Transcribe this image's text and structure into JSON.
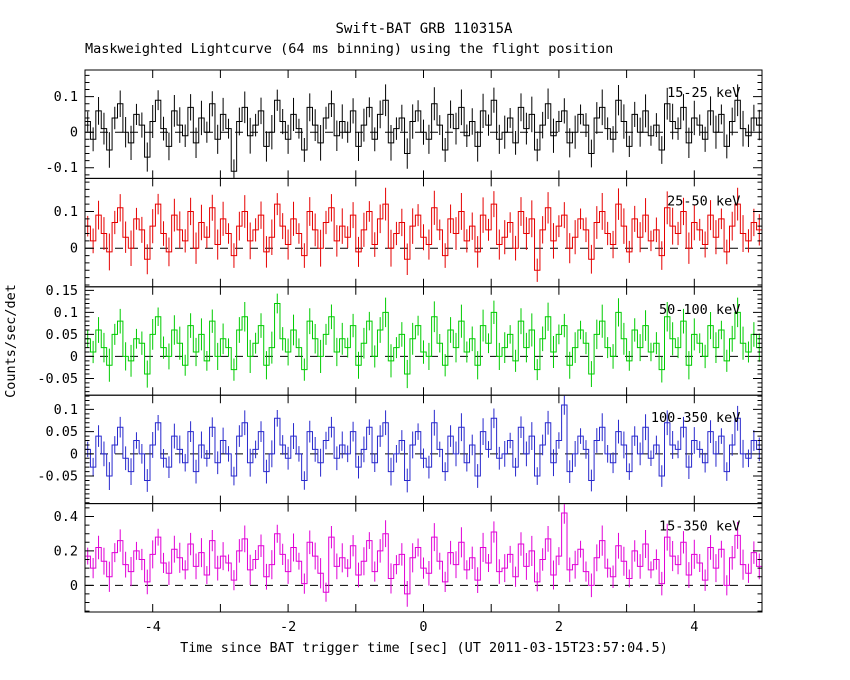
{
  "title": "Swift-BAT GRB 110315A",
  "subtitle": "Maskweighted Lightcurve (64 ms binning) using the flight position",
  "ylabel": "Counts/sec/det",
  "xlabel": "Time since BAT trigger time [sec] (UT 2011-03-15T23:57:04.5)",
  "chart_data": {
    "type": "line",
    "style": "step-histogram-with-error-bars",
    "grid": false,
    "x_range": [
      -5,
      5
    ],
    "x_major_ticks": [
      -4,
      -2,
      0,
      2,
      4
    ],
    "x_tick_step": 1,
    "bin_width_s": 0.08,
    "zero_line": "dashed",
    "panels": [
      {
        "label": "15-25 keV",
        "color": "#000000",
        "ylim": [
          -0.13,
          0.175
        ],
        "yticks": [
          -0.1,
          0,
          0.1
        ],
        "ytick_labels": [
          "-0.1",
          "0",
          "0.1"
        ],
        "minor_step": 0.02,
        "err": 0.04,
        "unit": 0.01,
        "values": [
          3,
          -2,
          6,
          1,
          -5,
          4,
          8,
          0,
          -3,
          5,
          2,
          -7,
          3,
          9,
          1,
          -4,
          6,
          2,
          -1,
          7,
          -3,
          4,
          0,
          8,
          -2,
          5,
          1,
          -11,
          3,
          7,
          -1,
          2,
          6,
          -4,
          0,
          9,
          3,
          -2,
          5,
          1,
          -5,
          7,
          2,
          -3,
          4,
          8,
          -1,
          3,
          0,
          6,
          -4,
          2,
          7,
          -2,
          5,
          9,
          -3,
          1,
          4,
          -6,
          3,
          6,
          0,
          -2,
          8,
          2,
          -5,
          5,
          1,
          7,
          -1,
          3,
          -4,
          6,
          2,
          9,
          -2,
          0,
          4,
          -3,
          7,
          1,
          5,
          -5,
          2,
          8,
          -1,
          3,
          6,
          -3,
          0,
          5,
          2,
          -6,
          4,
          7,
          1,
          -2,
          9,
          3,
          -4,
          5,
          0,
          6,
          -1,
          2,
          -5,
          8,
          3,
          1,
          7,
          -3,
          4,
          2,
          -2,
          6,
          0,
          5,
          -4,
          3,
          9,
          1,
          -1,
          4,
          2
        ]
      },
      {
        "label": "25-50 keV",
        "color": "#e60000",
        "ylim": [
          -0.105,
          0.19
        ],
        "yticks": [
          0,
          0.1
        ],
        "ytick_labels": [
          "0",
          "0.1"
        ],
        "minor_step": 0.02,
        "err": 0.04,
        "unit": 0.01,
        "values": [
          6,
          2,
          9,
          4,
          -1,
          7,
          11,
          3,
          0,
          8,
          5,
          -3,
          6,
          12,
          4,
          -1,
          9,
          5,
          2,
          10,
          0,
          7,
          3,
          11,
          1,
          8,
          4,
          -2,
          6,
          10,
          2,
          5,
          9,
          -1,
          3,
          12,
          6,
          1,
          8,
          4,
          -2,
          10,
          5,
          0,
          7,
          11,
          2,
          6,
          3,
          9,
          -1,
          5,
          10,
          1,
          8,
          12,
          0,
          4,
          7,
          -3,
          6,
          9,
          3,
          1,
          11,
          5,
          -2,
          8,
          4,
          10,
          2,
          6,
          -1,
          9,
          5,
          12,
          1,
          3,
          7,
          0,
          10,
          4,
          8,
          -6,
          5,
          11,
          2,
          6,
          9,
          0,
          3,
          8,
          5,
          -3,
          7,
          10,
          4,
          1,
          12,
          6,
          -1,
          8,
          3,
          9,
          2,
          5,
          -2,
          11,
          6,
          4,
          10,
          0,
          7,
          5,
          1,
          9,
          3,
          8,
          -1,
          6,
          12,
          4,
          2,
          7,
          5
        ]
      },
      {
        "label": "50-100 keV",
        "color": "#00cc00",
        "ylim": [
          -0.088,
          0.158
        ],
        "yticks": [
          -0.05,
          0,
          0.05,
          0.1,
          0.15
        ],
        "ytick_labels": [
          "-0.05",
          "0",
          "0.05",
          "0.1",
          "0.15"
        ],
        "minor_step": 0.01,
        "err": 0.03,
        "unit": 0.01,
        "values": [
          4,
          1,
          6,
          2,
          -2,
          5,
          8,
          0,
          -1,
          4,
          3,
          -4,
          5,
          9,
          2,
          0,
          6,
          3,
          -2,
          7,
          1,
          5,
          -1,
          8,
          0,
          4,
          2,
          -3,
          6,
          9,
          0,
          3,
          7,
          -2,
          2,
          12,
          4,
          1,
          6,
          2,
          -3,
          8,
          4,
          0,
          5,
          9,
          1,
          4,
          2,
          7,
          -2,
          3,
          8,
          0,
          6,
          10,
          -1,
          2,
          5,
          -4,
          4,
          7,
          1,
          0,
          9,
          3,
          -2,
          6,
          2,
          8,
          1,
          4,
          -2,
          7,
          3,
          10,
          0,
          2,
          5,
          -1,
          8,
          2,
          6,
          -3,
          4,
          9,
          1,
          5,
          7,
          -2,
          2,
          6,
          3,
          -4,
          5,
          8,
          2,
          0,
          10,
          4,
          -1,
          6,
          2,
          7,
          1,
          3,
          -3,
          9,
          4,
          2,
          8,
          -2,
          5,
          3,
          0,
          7,
          2,
          6,
          -1,
          4,
          10,
          3,
          1,
          5,
          2
        ]
      },
      {
        "label": "100-350 keV",
        "color": "#2828cd",
        "ylim": [
          -0.112,
          0.132
        ],
        "yticks": [
          -0.05,
          0,
          0.05,
          0.1
        ],
        "ytick_labels": [
          "-0.05",
          "0",
          "0.05",
          "0.1"
        ],
        "minor_step": 0.01,
        "err": 0.025,
        "unit": 0.01,
        "values": [
          1,
          -3,
          4,
          0,
          -5,
          2,
          6,
          -1,
          -4,
          3,
          0,
          -6,
          2,
          7,
          -1,
          -3,
          4,
          1,
          -2,
          5,
          -4,
          2,
          -1,
          6,
          -2,
          3,
          0,
          -5,
          4,
          7,
          -2,
          1,
          5,
          -4,
          0,
          8,
          2,
          -1,
          4,
          0,
          -6,
          5,
          1,
          -2,
          3,
          6,
          -1,
          2,
          0,
          5,
          -3,
          1,
          6,
          -2,
          4,
          7,
          -4,
          0,
          3,
          -6,
          2,
          5,
          -1,
          -3,
          7,
          1,
          -4,
          4,
          0,
          6,
          -2,
          2,
          -5,
          5,
          1,
          8,
          -1,
          0,
          3,
          -3,
          6,
          0,
          4,
          -5,
          2,
          7,
          -2,
          3,
          11,
          -4,
          0,
          4,
          1,
          -6,
          3,
          6,
          0,
          -2,
          5,
          2,
          -4,
          4,
          0,
          6,
          -1,
          2,
          -5,
          7,
          2,
          1,
          6,
          -3,
          3,
          1,
          -2,
          5,
          0,
          4,
          -4,
          2,
          8,
          0,
          -1,
          3,
          1
        ]
      },
      {
        "label": "15-350 keV",
        "color": "#e100d7",
        "ylim": [
          -0.155,
          0.475
        ],
        "yticks": [
          0,
          0.2,
          0.4
        ],
        "ytick_labels": [
          "0",
          "0.2",
          "0.4"
        ],
        "minor_step": 0.05,
        "err": 0.07,
        "unit": 0.01,
        "values": [
          17,
          10,
          22,
          14,
          5,
          19,
          26,
          12,
          8,
          20,
          15,
          2,
          18,
          28,
          13,
          7,
          21,
          16,
          9,
          24,
          11,
          19,
          6,
          26,
          10,
          17,
          13,
          3,
          20,
          27,
          9,
          15,
          23,
          5,
          12,
          30,
          18,
          8,
          22,
          14,
          1,
          25,
          17,
          7,
          -4,
          28,
          11,
          16,
          10,
          23,
          6,
          14,
          26,
          8,
          20,
          30,
          4,
          12,
          18,
          -5,
          16,
          22,
          10,
          7,
          28,
          14,
          2,
          19,
          12,
          25,
          9,
          16,
          3,
          22,
          13,
          31,
          8,
          10,
          18,
          5,
          24,
          11,
          20,
          2,
          15,
          27,
          6,
          17,
          42,
          9,
          12,
          21,
          8,
          0,
          16,
          26,
          10,
          5,
          23,
          14,
          4,
          20,
          11,
          24,
          9,
          15,
          1,
          28,
          17,
          12,
          25,
          6,
          18,
          13,
          3,
          22,
          10,
          21,
          0,
          16,
          29,
          12,
          7,
          19,
          11
        ]
      }
    ]
  }
}
